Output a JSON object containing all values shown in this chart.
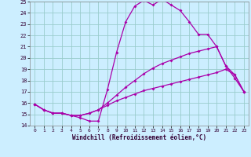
{
  "xlabel": "Windchill (Refroidissement éolien,°C)",
  "background_color": "#cceeff",
  "grid_color": "#99cccc",
  "line_color": "#aa00aa",
  "xlim": [
    -0.5,
    23.5
  ],
  "ylim": [
    14,
    25
  ],
  "xticks": [
    0,
    1,
    2,
    3,
    4,
    5,
    6,
    7,
    8,
    9,
    10,
    11,
    12,
    13,
    14,
    15,
    16,
    17,
    18,
    19,
    20,
    21,
    22,
    23
  ],
  "yticks": [
    14,
    15,
    16,
    17,
    18,
    19,
    20,
    21,
    22,
    23,
    24,
    25
  ],
  "series1_x": [
    0,
    1,
    2,
    3,
    4,
    5,
    6,
    7,
    8,
    9,
    10,
    11,
    12,
    13,
    14,
    15,
    16,
    17,
    18,
    19,
    20,
    21,
    22,
    23
  ],
  "series1_y": [
    15.9,
    15.4,
    15.1,
    15.1,
    14.9,
    14.7,
    14.4,
    14.4,
    17.2,
    20.5,
    23.2,
    24.6,
    25.1,
    24.7,
    25.2,
    24.7,
    24.2,
    23.2,
    22.1,
    22.1,
    21.0,
    19.3,
    18.2,
    17.0
  ],
  "series2_x": [
    0,
    1,
    2,
    3,
    4,
    5,
    6,
    7,
    8,
    9,
    10,
    11,
    12,
    13,
    14,
    15,
    16,
    17,
    18,
    19,
    20,
    21,
    22,
    23
  ],
  "series2_y": [
    15.9,
    15.4,
    15.1,
    15.1,
    14.9,
    14.9,
    15.1,
    15.4,
    15.8,
    16.2,
    16.5,
    16.8,
    17.1,
    17.3,
    17.5,
    17.7,
    17.9,
    18.1,
    18.3,
    18.5,
    18.7,
    19.0,
    18.5,
    17.0
  ],
  "series3_x": [
    0,
    1,
    2,
    3,
    4,
    5,
    6,
    7,
    8,
    9,
    10,
    11,
    12,
    13,
    14,
    15,
    16,
    17,
    18,
    19,
    20,
    21,
    22,
    23
  ],
  "series3_y": [
    15.9,
    15.4,
    15.1,
    15.1,
    14.9,
    14.9,
    15.1,
    15.4,
    16.0,
    16.7,
    17.4,
    18.0,
    18.6,
    19.1,
    19.5,
    19.8,
    20.1,
    20.4,
    20.6,
    20.8,
    21.0,
    19.3,
    18.5,
    17.0
  ]
}
